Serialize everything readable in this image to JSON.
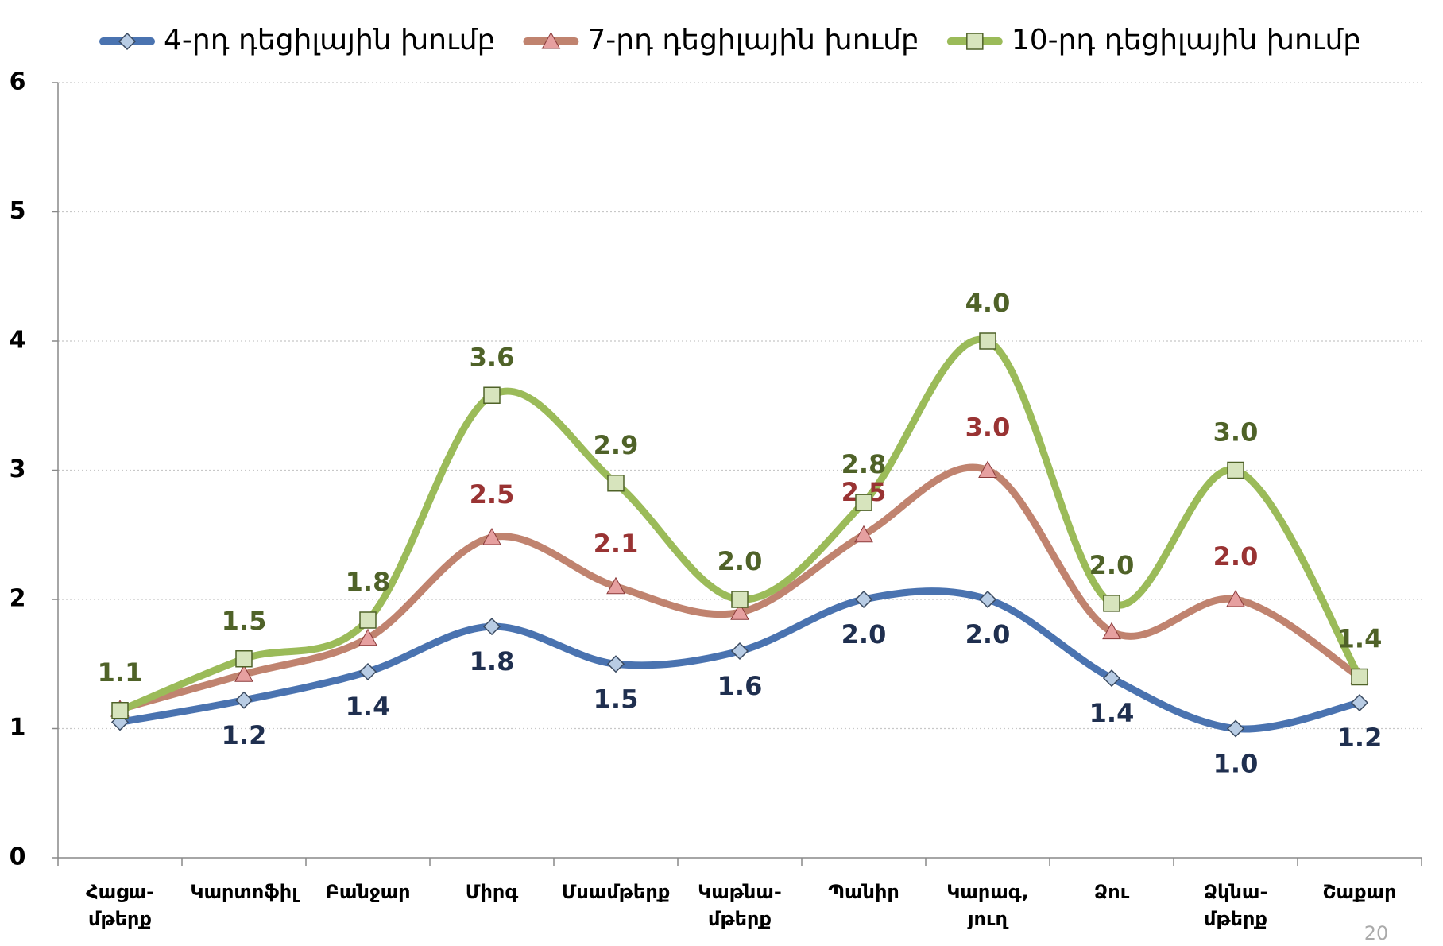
{
  "chart_data": {
    "type": "line",
    "categories": [
      "Հացա-\nմթերք",
      "Կարտոֆիլ",
      "Բանջար",
      "Միրգ",
      "Մսամթերք",
      "Կաթնա-\nմթերք",
      "Պանիր",
      "Կարագ,\nյուղ",
      "Ձու",
      "Ձկնա-\nմթերք",
      "Շաքար"
    ],
    "series": [
      {
        "name": "4-րդ դեցիլային խումբ",
        "color": "#4a73b0",
        "label_color": "#1f2f4f",
        "marker": "diamond",
        "values": [
          1.05,
          1.22,
          1.44,
          1.79,
          1.5,
          1.6,
          2.0,
          2.0,
          1.39,
          1.0,
          1.2
        ],
        "value_labels": [
          null,
          "1.2",
          "1.4",
          "1.8",
          "1.5",
          "1.6",
          "2.0",
          "2.0",
          "1.4",
          "1.0",
          "1.2"
        ]
      },
      {
        "name": "7-րդ դեցիլային խումբ",
        "color": "#c0836f",
        "label_color": "#993333",
        "marker": "triangle",
        "values": [
          1.15,
          1.42,
          1.7,
          2.48,
          2.1,
          1.9,
          2.5,
          3.0,
          1.75,
          2.0,
          1.4
        ],
        "value_labels": [
          null,
          null,
          null,
          "2.5",
          "2.1",
          null,
          "2.5",
          "3.0",
          null,
          "2.0",
          null
        ]
      },
      {
        "name": "10-րդ դեցիլային խումբ",
        "color": "#9bbb59",
        "label_color": "#4f6228",
        "marker": "square",
        "values": [
          1.14,
          1.54,
          1.84,
          3.58,
          2.9,
          2.0,
          2.75,
          4.0,
          1.97,
          3.0,
          1.4
        ],
        "value_labels": [
          "1.1",
          "1.5",
          "1.8",
          "3.6",
          "2.9",
          "2.0",
          "2.8",
          "4.0",
          "2.0",
          "3.0",
          "1.4"
        ]
      }
    ],
    "ylim": [
      0,
      6
    ],
    "yticks": [
      0,
      1,
      2,
      3,
      4,
      5,
      6
    ],
    "grid": true,
    "legend": "top",
    "page_number": "20"
  }
}
